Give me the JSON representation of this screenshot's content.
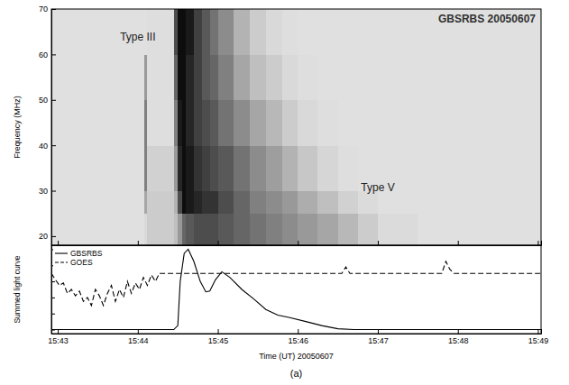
{
  "chart_data": [
    {
      "type": "heatmap",
      "title": "GBSRBS 20050607",
      "y_label": "Frequency (MHz)",
      "xlim": [
        942.92,
        949.04
      ],
      "xticks": [
        943,
        944,
        945,
        946,
        947,
        948,
        949
      ],
      "ylim": [
        18,
        70
      ],
      "yticks": [
        20,
        30,
        40,
        50,
        60,
        70
      ],
      "tick_labels": "y",
      "color": "#000000",
      "zlim": [
        0,
        1
      ],
      "x_edges": [
        942.92,
        943.5,
        944.0,
        944.08,
        944.12,
        944.45,
        944.5,
        944.55,
        944.6,
        944.7,
        944.8,
        944.9,
        945.0,
        945.2,
        945.4,
        945.6,
        945.8,
        946.0,
        946.25,
        946.5,
        946.75,
        947.0,
        947.5,
        948.0,
        948.5,
        949.04
      ],
      "y_edges": [
        18,
        25,
        30,
        40,
        50,
        60,
        70
      ],
      "values": [
        [
          0.12,
          0.12,
          0.12,
          0.15,
          0.2,
          0.25,
          0.4,
          0.6,
          0.65,
          0.7,
          0.7,
          0.7,
          0.65,
          0.6,
          0.55,
          0.5,
          0.45,
          0.4,
          0.35,
          0.28,
          0.2,
          0.14,
          0.12,
          0.12,
          0.12
        ],
        [
          0.12,
          0.12,
          0.12,
          0.35,
          0.2,
          0.3,
          0.7,
          0.95,
          0.9,
          0.85,
          0.8,
          0.8,
          0.7,
          0.6,
          0.5,
          0.45,
          0.4,
          0.32,
          0.25,
          0.18,
          0.14,
          0.12,
          0.12,
          0.12,
          0.12
        ],
        [
          0.12,
          0.12,
          0.12,
          0.5,
          0.18,
          0.4,
          0.85,
          0.95,
          0.9,
          0.8,
          0.75,
          0.7,
          0.65,
          0.55,
          0.45,
          0.38,
          0.3,
          0.22,
          0.16,
          0.13,
          0.12,
          0.12,
          0.12,
          0.12,
          0.12
        ],
        [
          0.12,
          0.12,
          0.12,
          0.5,
          0.13,
          0.5,
          0.9,
          0.95,
          0.85,
          0.75,
          0.7,
          0.65,
          0.55,
          0.45,
          0.35,
          0.28,
          0.2,
          0.15,
          0.13,
          0.12,
          0.12,
          0.12,
          0.12,
          0.12,
          0.12
        ],
        [
          0.12,
          0.12,
          0.12,
          0.4,
          0.13,
          0.6,
          0.95,
          0.95,
          0.85,
          0.75,
          0.65,
          0.6,
          0.5,
          0.35,
          0.25,
          0.2,
          0.15,
          0.13,
          0.12,
          0.12,
          0.12,
          0.12,
          0.12,
          0.12,
          0.12
        ],
        [
          0.12,
          0.12,
          0.12,
          0.12,
          0.13,
          0.7,
          0.95,
          0.95,
          0.9,
          0.75,
          0.65,
          0.55,
          0.45,
          0.3,
          0.2,
          0.15,
          0.13,
          0.12,
          0.12,
          0.12,
          0.12,
          0.12,
          0.12,
          0.12,
          0.12
        ]
      ],
      "annotations": [
        {
          "text": "Type III",
          "x": 944.0,
          "y": 63
        },
        {
          "text": "Type V",
          "x": 947.0,
          "y": 30
        }
      ]
    },
    {
      "type": "line",
      "y_label": "Summed light curve",
      "x_label": "Time (UT) 20050607",
      "caption": "(a)",
      "xlim": [
        942.92,
        949.04
      ],
      "xticks": [
        {
          "value": 943,
          "label": "15:43"
        },
        {
          "value": 944,
          "label": "15:44"
        },
        {
          "value": 945,
          "label": "15:45"
        },
        {
          "value": 946,
          "label": "15:46"
        },
        {
          "value": 947,
          "label": "15:47"
        },
        {
          "value": 948,
          "label": "15:48"
        },
        {
          "value": 949,
          "label": "15:49"
        }
      ],
      "ylim": [
        -0.05,
        1.05
      ],
      "yticks": [
        0,
        0.2,
        0.4,
        0.6,
        0.8,
        1.0
      ],
      "tick_labels": "x",
      "legend": "upper left",
      "series": [
        {
          "name": "GBSRBS",
          "color": "#000000",
          "line_style": "solid",
          "x": [
            942.92,
            944.45,
            944.5,
            944.53,
            944.58,
            944.63,
            944.7,
            944.78,
            944.85,
            944.9,
            944.97,
            945.05,
            945.15,
            945.3,
            945.45,
            945.6,
            945.75,
            945.9,
            946.1,
            946.3,
            946.5,
            946.7,
            949.04
          ],
          "values": [
            0,
            0,
            0.05,
            0.6,
            0.95,
            1.0,
            0.85,
            0.6,
            0.47,
            0.48,
            0.62,
            0.72,
            0.65,
            0.5,
            0.38,
            0.25,
            0.18,
            0.15,
            0.1,
            0.05,
            0.01,
            0,
            0
          ]
        },
        {
          "name": "GOES",
          "color": "#000000",
          "line_style": "dashed",
          "x": [
            942.92,
            942.97,
            943.02,
            943.07,
            943.12,
            943.17,
            943.22,
            943.27,
            943.32,
            943.37,
            943.42,
            943.47,
            943.52,
            943.57,
            943.62,
            943.67,
            943.72,
            943.77,
            943.82,
            943.87,
            943.92,
            943.97,
            944.02,
            944.07,
            944.12,
            944.17,
            944.22,
            944.27,
            944.3,
            946.55,
            946.6,
            946.65,
            946.7,
            947.8,
            947.85,
            947.9,
            947.95,
            948.0,
            949.04
          ],
          "values": [
            0.7,
            0.62,
            0.55,
            0.58,
            0.45,
            0.5,
            0.42,
            0.48,
            0.35,
            0.4,
            0.3,
            0.5,
            0.42,
            0.3,
            0.45,
            0.55,
            0.35,
            0.5,
            0.4,
            0.6,
            0.45,
            0.58,
            0.5,
            0.65,
            0.55,
            0.68,
            0.6,
            0.7,
            0.7,
            0.7,
            0.78,
            0.7,
            0.7,
            0.7,
            0.85,
            0.75,
            0.7,
            0.7,
            0.7
          ]
        }
      ]
    }
  ]
}
